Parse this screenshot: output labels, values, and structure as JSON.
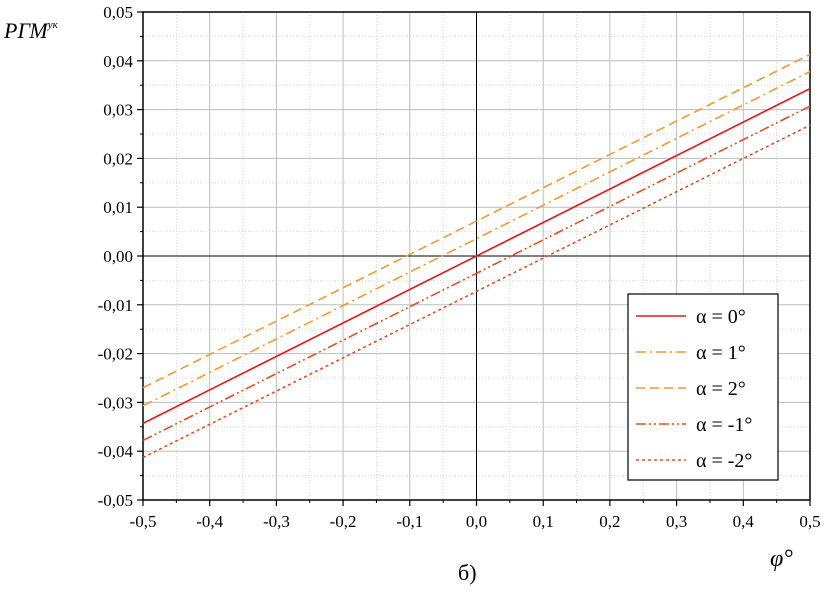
{
  "chart_data": {
    "type": "line",
    "ylabel_main": "РГМ",
    "ylabel_sup": "ук",
    "xlabel": "φ°",
    "caption": "б)",
    "xlim": [
      -0.5,
      0.5
    ],
    "ylim": [
      -0.05,
      0.05
    ],
    "x_ticks": [
      "-0,5",
      "-0,4",
      "-0,3",
      "-0,2",
      "-0,1",
      "0,0",
      "0,1",
      "0,2",
      "0,3",
      "0,4",
      "0,5"
    ],
    "y_ticks": [
      "-0,05",
      "-0,04",
      "-0,03",
      "-0,02",
      "-0,01",
      "0,00",
      "0,01",
      "0,02",
      "0,03",
      "0,04",
      "0,05"
    ],
    "grid": true,
    "minor_grid": true,
    "legend_position": "bottom-right",
    "series": [
      {
        "name": "α = 0°",
        "x": [
          -0.5,
          0.5
        ],
        "y": [
          -0.0343,
          0.0343
        ],
        "color": "#e31a1c",
        "dash": "solid"
      },
      {
        "name": "α = 1°",
        "x": [
          -0.5,
          0.5
        ],
        "y": [
          -0.0307,
          0.0378
        ],
        "color": "#f29a2e",
        "dash": "dashdot"
      },
      {
        "name": "α = 2°",
        "x": [
          -0.5,
          0.5
        ],
        "y": [
          -0.027,
          0.0413
        ],
        "color": "#f29a2e",
        "dash": "dash"
      },
      {
        "name": "α = -1°",
        "x": [
          -0.5,
          0.5
        ],
        "y": [
          -0.0378,
          0.0307
        ],
        "color": "#e0501a",
        "dash": "dashdotdot"
      },
      {
        "name": "α = -2°",
        "x": [
          -0.5,
          0.5
        ],
        "y": [
          -0.0413,
          0.0268
        ],
        "color": "#e0501a",
        "dash": "dot"
      }
    ]
  }
}
